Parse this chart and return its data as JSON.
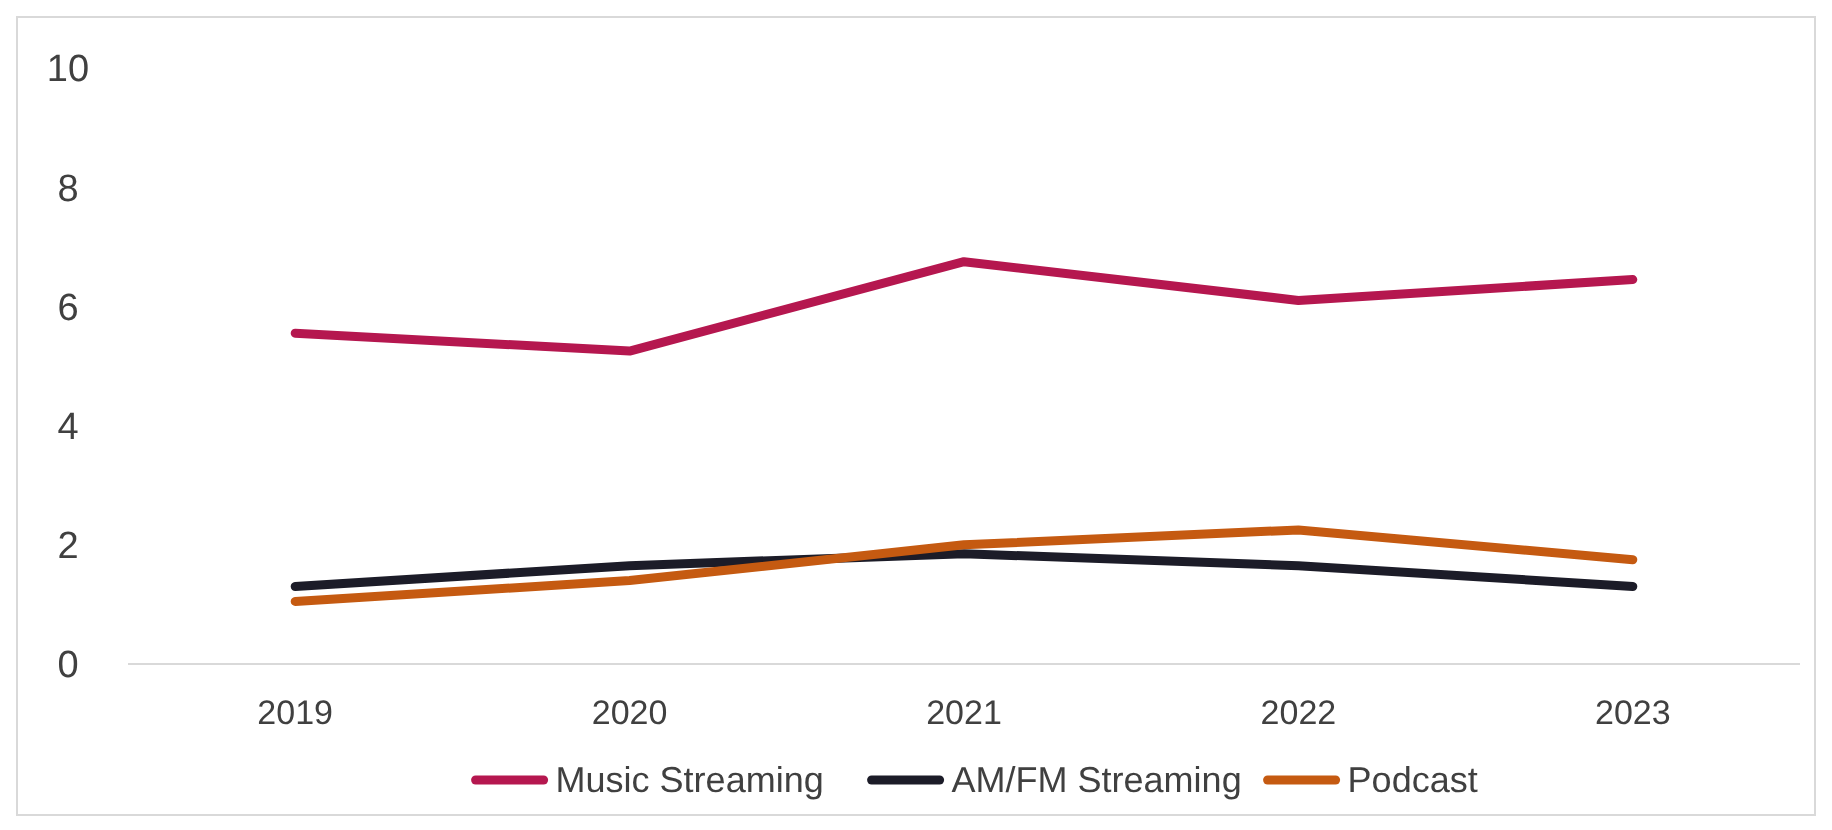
{
  "chart_data": {
    "type": "line",
    "categories": [
      "2019",
      "2020",
      "2021",
      "2022",
      "2023"
    ],
    "series": [
      {
        "name": "Music Streaming",
        "color": "#b5174f",
        "values": [
          5.55,
          5.25,
          6.75,
          6.1,
          6.45
        ]
      },
      {
        "name": "AM/FM Streaming",
        "color": "#1c1c28",
        "values": [
          1.3,
          1.65,
          1.85,
          1.65,
          1.3
        ]
      },
      {
        "name": "Podcast",
        "color": "#c55a11",
        "values": [
          1.05,
          1.4,
          2.0,
          2.25,
          1.75
        ]
      }
    ],
    "ylim": [
      0,
      10
    ],
    "yticks": [
      0,
      2,
      4,
      6,
      8,
      10
    ],
    "grid": false,
    "legend": "bottom",
    "marker": "none",
    "line_style": "solid"
  }
}
